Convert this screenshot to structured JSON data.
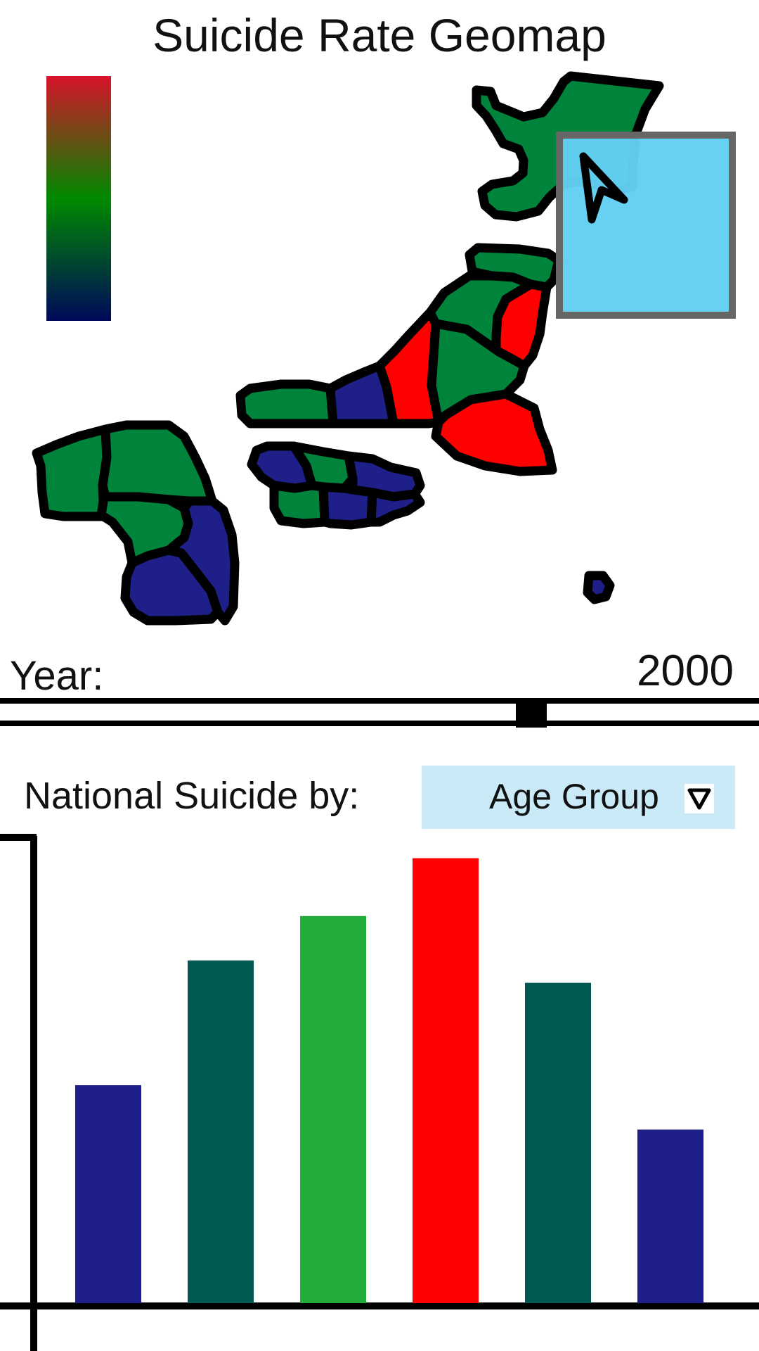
{
  "header": {
    "title": "Suicide Rate Geomap"
  },
  "legend": {
    "colors": [
      "#d7132b",
      "#008a00",
      "#00085a"
    ]
  },
  "map": {
    "region_colors": {
      "high": "#ff0000",
      "medium": "#00843c",
      "low": "#1f1f8a",
      "selection_fill": "#62cff3",
      "selection_border": "#666666"
    }
  },
  "year_control": {
    "label": "Year:",
    "value": "2000",
    "position": 0.7
  },
  "breakdown": {
    "label": "National Suicide by:",
    "selected": "Age Group"
  },
  "chart_data": {
    "type": "bar",
    "values": [
      49,
      77,
      87,
      100,
      72,
      39
    ],
    "colors": [
      "#1f1f8a",
      "#005a52",
      "#22ad3a",
      "#ff0000",
      "#005a52",
      "#1f1f8a"
    ],
    "ylim": [
      0,
      105
    ]
  }
}
